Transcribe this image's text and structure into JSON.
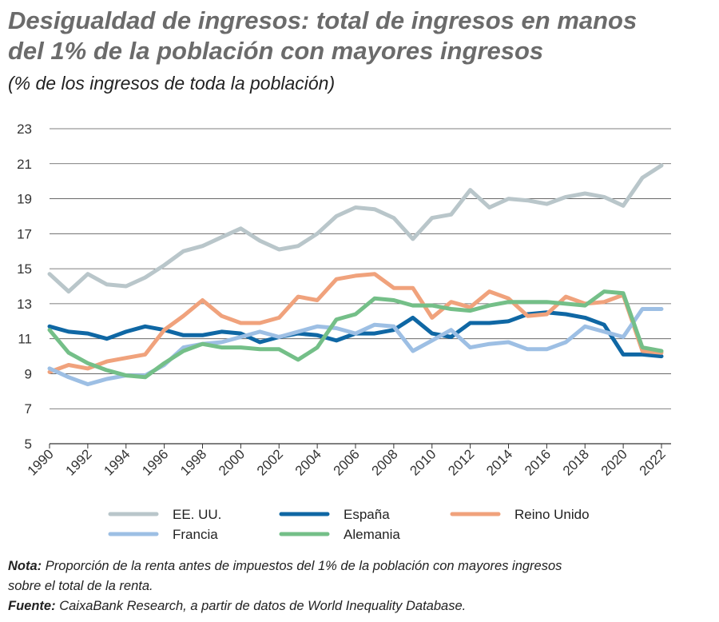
{
  "chart_data": {
    "type": "line",
    "title": [
      "Desigualdad de ingresos: total de ingresos en manos",
      "del 1% de la población con mayores ingresos"
    ],
    "subtitle": "(% de los ingresos de toda la población)",
    "x": [
      1990,
      1991,
      1992,
      1993,
      1994,
      1995,
      1996,
      1997,
      1998,
      1999,
      2000,
      2001,
      2002,
      2003,
      2004,
      2005,
      2006,
      2007,
      2008,
      2009,
      2010,
      2011,
      2012,
      2013,
      2014,
      2015,
      2016,
      2017,
      2018,
      2019,
      2020,
      2021,
      2022
    ],
    "xlim": [
      1990,
      2022
    ],
    "xticks": [
      1990,
      1992,
      1994,
      1996,
      1998,
      2000,
      2002,
      2004,
      2006,
      2008,
      2010,
      2012,
      2014,
      2016,
      2018,
      2020,
      2022
    ],
    "ylim": [
      5,
      23
    ],
    "yticks": [
      5,
      7,
      9,
      11,
      13,
      15,
      17,
      19,
      21,
      23
    ],
    "grid": true,
    "series": [
      {
        "name": "EE. UU.",
        "color": "#b9c6ca",
        "values": [
          14.7,
          13.7,
          14.7,
          14.1,
          14.0,
          14.5,
          15.2,
          16.0,
          16.3,
          16.8,
          17.3,
          16.6,
          16.1,
          16.3,
          17.0,
          18.0,
          18.5,
          18.4,
          17.9,
          16.7,
          17.9,
          18.1,
          19.5,
          18.5,
          19.0,
          18.9,
          18.7,
          19.1,
          19.3,
          19.1,
          18.6,
          20.2,
          20.9
        ]
      },
      {
        "name": "España",
        "color": "#0f67a4",
        "values": [
          11.7,
          11.4,
          11.3,
          11.0,
          11.4,
          11.7,
          11.5,
          11.2,
          11.2,
          11.4,
          11.3,
          10.8,
          11.1,
          11.3,
          11.2,
          10.9,
          11.3,
          11.3,
          11.5,
          12.2,
          11.3,
          11.1,
          11.9,
          11.9,
          12.0,
          12.4,
          12.5,
          12.4,
          12.2,
          11.8,
          10.1,
          10.1,
          10.0
        ]
      },
      {
        "name": "Reino Unido",
        "color": "#f0a27c",
        "values": [
          9.1,
          9.5,
          9.3,
          9.7,
          9.9,
          10.1,
          11.5,
          12.3,
          13.2,
          12.3,
          11.9,
          11.9,
          12.2,
          13.4,
          13.2,
          14.4,
          14.6,
          14.7,
          13.9,
          13.9,
          12.2,
          13.1,
          12.8,
          13.7,
          13.3,
          12.3,
          12.4,
          13.4,
          13.0,
          13.1,
          13.5,
          10.3,
          10.2
        ]
      },
      {
        "name": "Francia",
        "color": "#9dbfe4",
        "values": [
          9.3,
          8.8,
          8.4,
          8.7,
          8.9,
          8.9,
          9.5,
          10.5,
          10.7,
          10.8,
          11.1,
          11.4,
          11.1,
          11.4,
          11.7,
          11.6,
          11.3,
          11.8,
          11.7,
          10.3,
          10.9,
          11.5,
          10.5,
          10.7,
          10.8,
          10.4,
          10.4,
          10.8,
          11.7,
          11.4,
          11.1,
          12.7,
          12.7
        ]
      },
      {
        "name": "Alemania",
        "color": "#74bf88",
        "values": [
          11.5,
          10.2,
          9.6,
          9.2,
          8.9,
          8.8,
          9.6,
          10.3,
          10.7,
          10.5,
          10.5,
          10.4,
          10.4,
          9.8,
          10.5,
          12.1,
          12.4,
          13.3,
          13.2,
          12.9,
          12.9,
          12.7,
          12.6,
          12.9,
          13.1,
          13.1,
          13.1,
          13.0,
          12.9,
          13.7,
          13.6,
          10.5,
          10.3
        ]
      }
    ],
    "note": {
      "label": "Nota:",
      "lines": [
        "Proporción de la renta antes de impuestos del 1% de la población con mayores ingresos",
        "sobre el total de la renta."
      ]
    },
    "source": {
      "label": "Fuente:",
      "text": "CaixaBank Research, a partir de datos de World Inequality Database."
    }
  }
}
